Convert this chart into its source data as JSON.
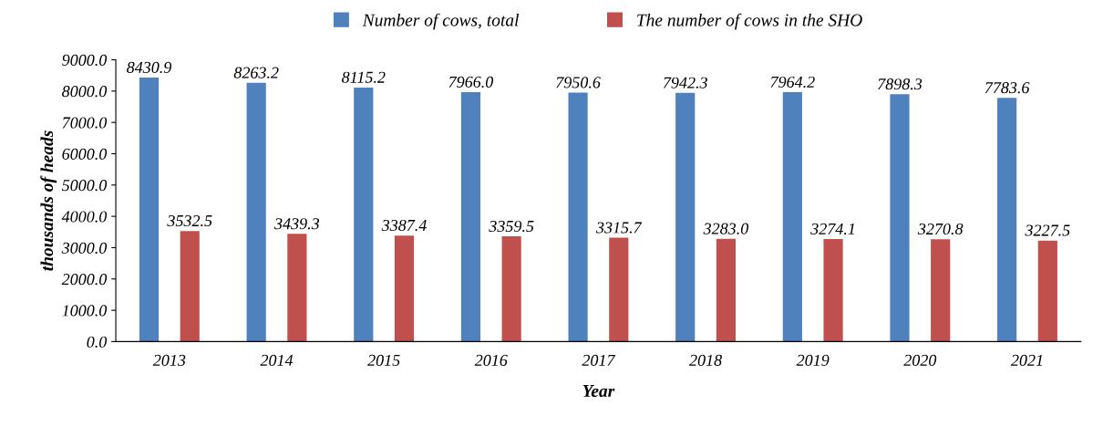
{
  "chart_data": {
    "type": "bar",
    "xlabel": "Year",
    "ylabel": "thousands of heads",
    "categories": [
      "2013",
      "2014",
      "2015",
      "2016",
      "2017",
      "2018",
      "2019",
      "2020",
      "2021"
    ],
    "series": [
      {
        "name": "Number of cows, total",
        "color": "#4f81bd",
        "values": [
          8430.9,
          8263.2,
          8115.2,
          7966.0,
          7950.6,
          7942.3,
          7964.2,
          7898.3,
          7783.6
        ],
        "value_labels": [
          "8430.9",
          "8263.2",
          "8115.2",
          "7966.0",
          "7950.6",
          "7942.3",
          "7964.2",
          "7898.3",
          "7783.6"
        ]
      },
      {
        "name": "The number of cows in the SHO",
        "color": "#c0504d",
        "values": [
          3532.5,
          3439.3,
          3387.4,
          3359.5,
          3315.7,
          3283.0,
          3274.1,
          3270.8,
          3227.5
        ],
        "value_labels": [
          "3532.5",
          "3439.3",
          "3387.4",
          "3359.5",
          "3315.7",
          "3283.0",
          "3274.1",
          "3270.8",
          "3227.5"
        ]
      }
    ],
    "ylim": [
      0,
      9000
    ],
    "yticks": [
      {
        "value": 0,
        "label": "0.0"
      },
      {
        "value": 1000,
        "label": "1000.0"
      },
      {
        "value": 2000,
        "label": "2000.0"
      },
      {
        "value": 3000,
        "label": "3000.0"
      },
      {
        "value": 4000,
        "label": "4000.0"
      },
      {
        "value": 5000,
        "label": "5000.0"
      },
      {
        "value": 6000,
        "label": "6000.0"
      },
      {
        "value": 7000,
        "label": "7000.0"
      },
      {
        "value": 8000,
        "label": "8000.0"
      },
      {
        "value": 9000,
        "label": "9000.0"
      }
    ],
    "legend": "top",
    "grid": false
  }
}
